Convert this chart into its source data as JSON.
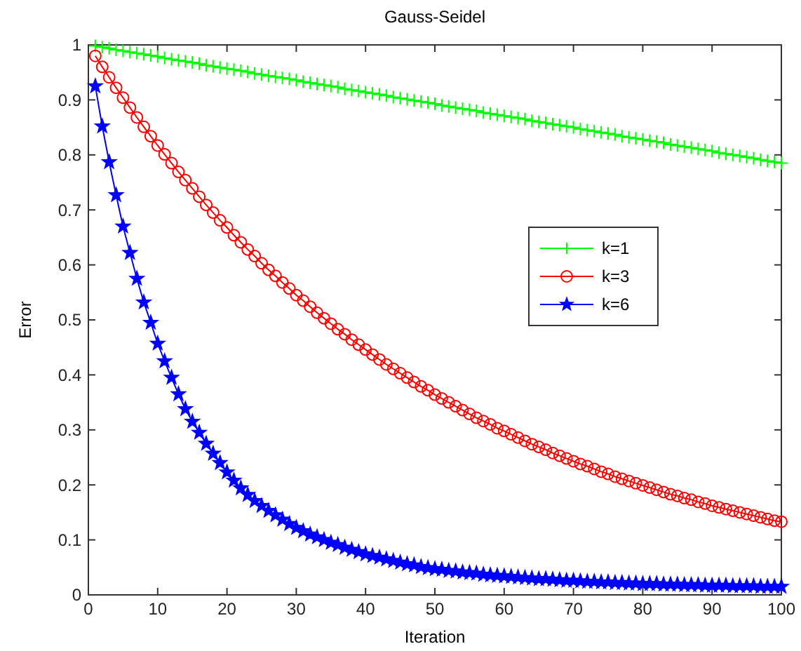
{
  "chart_data": {
    "type": "line",
    "title": "Gauss-Seidel",
    "xlabel": "Iteration",
    "ylabel": "Error",
    "x": [
      1,
      2,
      3,
      4,
      5,
      6,
      7,
      8,
      9,
      10,
      11,
      12,
      13,
      14,
      15,
      16,
      17,
      18,
      19,
      20,
      21,
      22,
      23,
      24,
      25,
      26,
      27,
      28,
      29,
      30,
      31,
      32,
      33,
      34,
      35,
      36,
      37,
      38,
      39,
      40,
      41,
      42,
      43,
      44,
      45,
      46,
      47,
      48,
      49,
      50,
      51,
      52,
      53,
      54,
      55,
      56,
      57,
      58,
      59,
      60,
      61,
      62,
      63,
      64,
      65,
      66,
      67,
      68,
      69,
      70,
      71,
      72,
      73,
      74,
      75,
      76,
      77,
      78,
      79,
      80,
      81,
      82,
      83,
      84,
      85,
      86,
      87,
      88,
      89,
      90,
      91,
      92,
      93,
      94,
      95,
      96,
      97,
      98,
      99,
      100
    ],
    "xlim": [
      0,
      100
    ],
    "xticks": [
      0,
      10,
      20,
      30,
      40,
      50,
      60,
      70,
      80,
      90,
      100
    ],
    "ylim": [
      0,
      1
    ],
    "yticks": [
      0,
      0.1,
      0.2,
      0.3,
      0.4,
      0.5,
      0.6,
      0.7,
      0.8,
      0.9,
      1
    ],
    "grid": false,
    "legend": "right",
    "line_style": "solid",
    "series": [
      {
        "name": "k=1",
        "color": "#00ff00",
        "marker": "cross",
        "values": [
          0.998,
          0.996,
          0.994,
          0.991,
          0.989,
          0.987,
          0.985,
          0.983,
          0.981,
          0.979,
          0.976,
          0.974,
          0.972,
          0.97,
          0.968,
          0.966,
          0.963,
          0.961,
          0.959,
          0.957,
          0.955,
          0.953,
          0.951,
          0.948,
          0.946,
          0.944,
          0.942,
          0.94,
          0.938,
          0.936,
          0.933,
          0.931,
          0.929,
          0.927,
          0.925,
          0.923,
          0.92,
          0.918,
          0.916,
          0.914,
          0.912,
          0.91,
          0.908,
          0.905,
          0.903,
          0.901,
          0.899,
          0.897,
          0.895,
          0.893,
          0.89,
          0.888,
          0.886,
          0.884,
          0.882,
          0.88,
          0.877,
          0.875,
          0.873,
          0.871,
          0.869,
          0.867,
          0.865,
          0.862,
          0.86,
          0.858,
          0.856,
          0.854,
          0.852,
          0.85,
          0.847,
          0.845,
          0.843,
          0.841,
          0.839,
          0.837,
          0.834,
          0.832,
          0.83,
          0.828,
          0.826,
          0.824,
          0.822,
          0.819,
          0.817,
          0.815,
          0.813,
          0.811,
          0.809,
          0.807,
          0.804,
          0.802,
          0.8,
          0.798,
          0.796,
          0.794,
          0.791,
          0.789,
          0.787,
          0.785
        ]
      },
      {
        "name": "k=3",
        "color": "#ff0000",
        "marker": "circle",
        "values": [
          0.98,
          0.96,
          0.941,
          0.922,
          0.904,
          0.886,
          0.868,
          0.851,
          0.834,
          0.817,
          0.801,
          0.785,
          0.769,
          0.754,
          0.739,
          0.724,
          0.709,
          0.695,
          0.681,
          0.668,
          0.654,
          0.641,
          0.628,
          0.616,
          0.603,
          0.591,
          0.58,
          0.568,
          0.557,
          0.545,
          0.535,
          0.524,
          0.513,
          0.503,
          0.493,
          0.483,
          0.474,
          0.464,
          0.455,
          0.446,
          0.437,
          0.428,
          0.419,
          0.411,
          0.403,
          0.395,
          0.387,
          0.379,
          0.372,
          0.364,
          0.357,
          0.35,
          0.343,
          0.336,
          0.329,
          0.322,
          0.316,
          0.31,
          0.303,
          0.298,
          0.292,
          0.286,
          0.28,
          0.274,
          0.269,
          0.264,
          0.258,
          0.253,
          0.248,
          0.243,
          0.238,
          0.234,
          0.229,
          0.224,
          0.22,
          0.215,
          0.211,
          0.207,
          0.203,
          0.199,
          0.195,
          0.191,
          0.187,
          0.183,
          0.18,
          0.176,
          0.173,
          0.169,
          0.166,
          0.162,
          0.159,
          0.156,
          0.153,
          0.15,
          0.147,
          0.144,
          0.141,
          0.138,
          0.135,
          0.133
        ]
      },
      {
        "name": "k=6",
        "color": "#0000ff",
        "marker": "star",
        "values": [
          0.925,
          0.852,
          0.787,
          0.727,
          0.67,
          0.622,
          0.575,
          0.532,
          0.495,
          0.457,
          0.425,
          0.395,
          0.365,
          0.338,
          0.315,
          0.295,
          0.275,
          0.257,
          0.24,
          0.223,
          0.208,
          0.194,
          0.182,
          0.171,
          0.162,
          0.153,
          0.145,
          0.137,
          0.129,
          0.122,
          0.116,
          0.11,
          0.105,
          0.1,
          0.095,
          0.091,
          0.086,
          0.082,
          0.078,
          0.074,
          0.071,
          0.068,
          0.065,
          0.062,
          0.059,
          0.056,
          0.054,
          0.051,
          0.049,
          0.047,
          0.046,
          0.044,
          0.043,
          0.041,
          0.04,
          0.039,
          0.037,
          0.036,
          0.035,
          0.034,
          0.033,
          0.032,
          0.031,
          0.03,
          0.029,
          0.029,
          0.028,
          0.027,
          0.026,
          0.026,
          0.025,
          0.024,
          0.024,
          0.023,
          0.023,
          0.022,
          0.022,
          0.021,
          0.021,
          0.02,
          0.02,
          0.02,
          0.019,
          0.019,
          0.019,
          0.018,
          0.018,
          0.018,
          0.017,
          0.017,
          0.017,
          0.017,
          0.016,
          0.016,
          0.016,
          0.016,
          0.015,
          0.015,
          0.015,
          0.015
        ]
      }
    ]
  }
}
